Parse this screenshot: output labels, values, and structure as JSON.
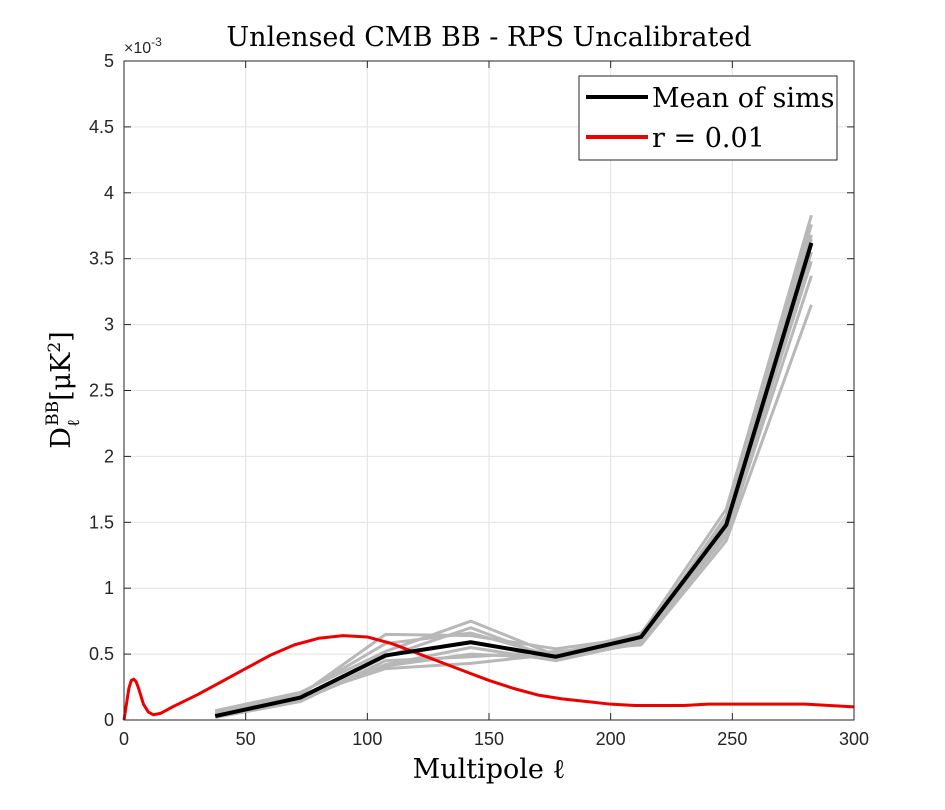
{
  "chart_data": {
    "type": "line",
    "title": "Unlensed CMB BB - RPS Uncalibrated",
    "xlabel": "Multipole ℓ",
    "ylabel": {
      "base": "D",
      "sub": "ℓ",
      "sup": "BB",
      "unit": "[μK",
      "unit_sup": "2",
      "unit_close": "]"
    },
    "xlim": [
      0,
      300
    ],
    "ylim": [
      0,
      0.005
    ],
    "xticks": [
      0,
      50,
      100,
      150,
      200,
      250,
      300
    ],
    "yticks": [
      0,
      0.0005,
      0.001,
      0.0015,
      0.002,
      0.0025,
      0.003,
      0.0035,
      0.004,
      0.0045,
      0.005
    ],
    "ytick_labels": [
      "0",
      "0.5",
      "1",
      "1.5",
      "2",
      "2.5",
      "3",
      "3.5",
      "4",
      "4.5",
      "5"
    ],
    "xtick_labels": [
      "0",
      "50",
      "100",
      "150",
      "200",
      "250",
      "300"
    ],
    "y_exponent_label": "×10",
    "y_exponent": "-3",
    "grid": true,
    "legend_position": "top-right",
    "legend": [
      "Mean of sims",
      "r = 0.01"
    ],
    "colors": {
      "mean": "#000000",
      "theory": "#ee0000",
      "sims": "#b8b8b8",
      "grid": "#e2e2e2",
      "axis": "#262626"
    },
    "sims_x": [
      37.5,
      72.5,
      107.5,
      142.5,
      177.5,
      212.5,
      247.5,
      282.5
    ],
    "sims": [
      [
        7e-05,
        0.00021,
        0.00052,
        0.00075,
        0.00049,
        0.00065,
        0.0016,
        0.00383
      ],
      [
        5e-05,
        0.00019,
        0.00065,
        0.00064,
        0.00054,
        0.00063,
        0.00152,
        0.00376
      ],
      [
        3e-05,
        0.00016,
        0.00048,
        0.0007,
        0.00046,
        0.0006,
        0.00147,
        0.00365
      ],
      [
        6e-05,
        0.00018,
        0.00039,
        0.00043,
        0.0005,
        0.00066,
        0.00149,
        0.00355
      ],
      [
        4e-05,
        0.00015,
        0.00042,
        0.00055,
        0.00045,
        0.00059,
        0.0014,
        0.00337
      ],
      [
        2e-05,
        0.00014,
        0.00045,
        0.00048,
        0.00052,
        0.00057,
        0.00136,
        0.00315
      ],
      [
        5e-05,
        0.0002,
        0.00058,
        0.00066,
        0.00048,
        0.00061,
        0.00155,
        0.00368
      ],
      [
        4e-05,
        0.00017,
        0.00041,
        0.0005,
        0.00047,
        0.00058,
        0.00144,
        0.00348
      ]
    ],
    "mean": {
      "name": "Mean of sims",
      "x": [
        37.5,
        72.5,
        107.5,
        142.5,
        177.5,
        212.5,
        247.5,
        282.5
      ],
      "y": [
        3e-05,
        0.00017,
        0.00049,
        0.00059,
        0.00048,
        0.00063,
        0.00148,
        0.00362
      ]
    },
    "theory": {
      "name": "r = 0.01",
      "x": [
        0,
        1,
        2,
        3,
        4,
        5,
        6,
        8,
        10,
        12,
        15,
        20,
        30,
        40,
        50,
        60,
        70,
        80,
        90,
        100,
        110,
        120,
        130,
        140,
        150,
        160,
        170,
        180,
        190,
        200,
        210,
        220,
        230,
        240,
        250,
        260,
        270,
        280,
        290,
        300
      ],
      "y": [
        0,
        0.00012,
        0.00024,
        0.0003,
        0.00031,
        0.00029,
        0.00024,
        0.00012,
        6e-05,
        4e-05,
        5e-05,
        0.0001,
        0.00019,
        0.00029,
        0.00039,
        0.00049,
        0.00057,
        0.00062,
        0.00064,
        0.00063,
        0.00058,
        0.00051,
        0.00044,
        0.00037,
        0.0003,
        0.00024,
        0.00019,
        0.00016,
        0.00014,
        0.00012,
        0.00011,
        0.00011,
        0.00011,
        0.00012,
        0.00012,
        0.00012,
        0.00012,
        0.00012,
        0.00011,
        0.0001
      ]
    }
  }
}
